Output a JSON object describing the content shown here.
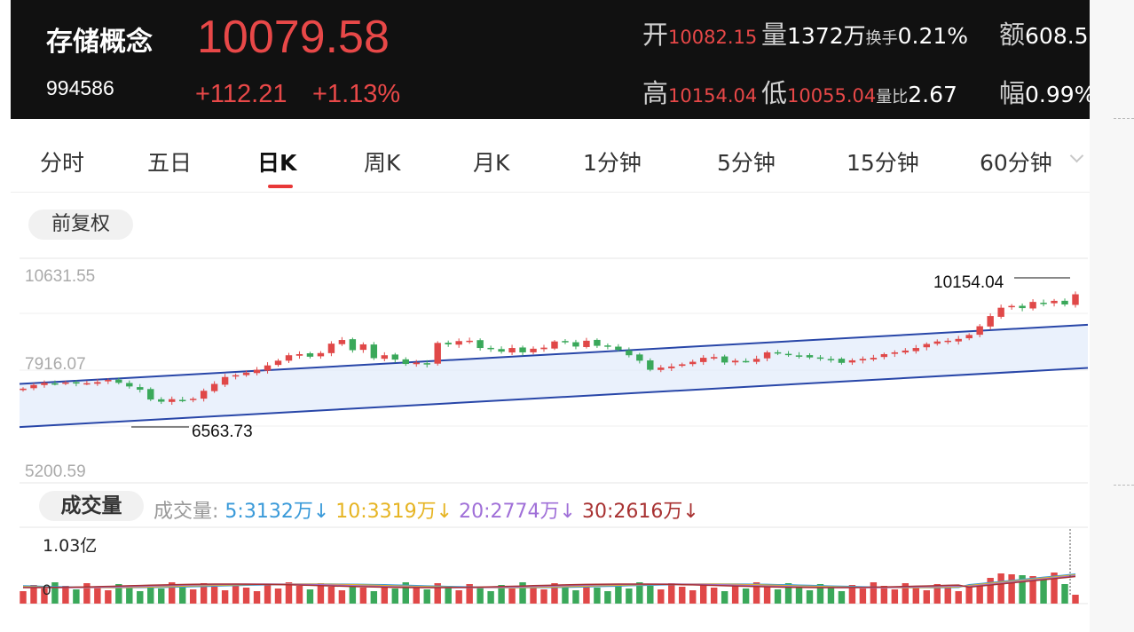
{
  "header": {
    "name": "存储概念",
    "code": "994586",
    "price": "10079.58",
    "change": "+112.21",
    "change_pct": "+1.13%",
    "open_label": "开",
    "open_value": "10082.15",
    "volume_label": "量",
    "volume_value": "1372万",
    "turnover_label": "换手",
    "turnover_value": "0.21%",
    "amount_label": "额",
    "amount_value": "608.5",
    "high_label": "高",
    "high_value": "10154.04",
    "low_label": "低",
    "low_value": "10055.04",
    "vol_ratio_label": "量比",
    "vol_ratio_value": "2.67",
    "amplitude_label": "幅",
    "amplitude_value": "0.99%"
  },
  "tabs": [
    {
      "label": "分时"
    },
    {
      "label": "五日"
    },
    {
      "label": "日K"
    },
    {
      "label": "周K"
    },
    {
      "label": "月K"
    },
    {
      "label": "1分钟"
    },
    {
      "label": "5分钟"
    },
    {
      "label": "15分钟"
    },
    {
      "label": "60分钟"
    }
  ],
  "active_tab": "日K",
  "adjust_label": "前复权",
  "volume_section": {
    "title": "成交量",
    "ma_prefix": "成交量:",
    "ma": [
      {
        "label": "5:3132万↓",
        "color": "#3a9ad9"
      },
      {
        "label": "10:3319万↓",
        "color": "#e6b422"
      },
      {
        "label": "20:2774万↓",
        "color": "#a070d8"
      },
      {
        "label": "30:2616万↓",
        "color": "#a83232"
      }
    ]
  },
  "chart_data": [
    {
      "type": "candlestick",
      "y_ticks": [
        "10631.55",
        "7916.07",
        "5200.59"
      ],
      "ylim": [
        5200.59,
        10631.55
      ],
      "max_label": "10154.04",
      "min_label": "6563.73",
      "channel": {
        "upper": [
          [
            0,
            7610
          ],
          [
            99,
            9240
          ]
        ],
        "lower": [
          [
            0,
            6420
          ],
          [
            99,
            8050
          ]
        ]
      },
      "closes": [
        7480,
        7580,
        7640,
        7610,
        7650,
        7620,
        7630,
        7660,
        7720,
        7640,
        7540,
        7450,
        7180,
        7120,
        7190,
        7150,
        7200,
        7420,
        7610,
        7800,
        7850,
        7920,
        8000,
        8120,
        8250,
        8400,
        8430,
        8360,
        8460,
        8720,
        8820,
        8540,
        8700,
        8320,
        8400,
        8280,
        8160,
        8200,
        8150,
        8740,
        8700,
        8790,
        8800,
        8600,
        8580,
        8500,
        8600,
        8480,
        8580,
        8610,
        8780,
        8760,
        8640,
        8800,
        8660,
        8640,
        8550,
        8400,
        8250,
        8000,
        8060,
        8090,
        8150,
        8220,
        8330,
        8350,
        8200,
        8250,
        8240,
        8300,
        8480,
        8450,
        8420,
        8390,
        8340,
        8310,
        8280,
        8190,
        8260,
        8300,
        8330,
        8430,
        8480,
        8530,
        8600,
        8710,
        8780,
        8800,
        8850,
        8960,
        9200,
        9480,
        9710,
        9760,
        9700,
        9870,
        9820,
        9900,
        9800,
        10080
      ],
      "low_point": 6563.73,
      "high_point": 10154.04
    },
    {
      "type": "bar",
      "title": "成交量",
      "y_ticks": [
        "1.03亿",
        "0"
      ],
      "ylim": [
        0,
        103000000
      ]
    }
  ]
}
